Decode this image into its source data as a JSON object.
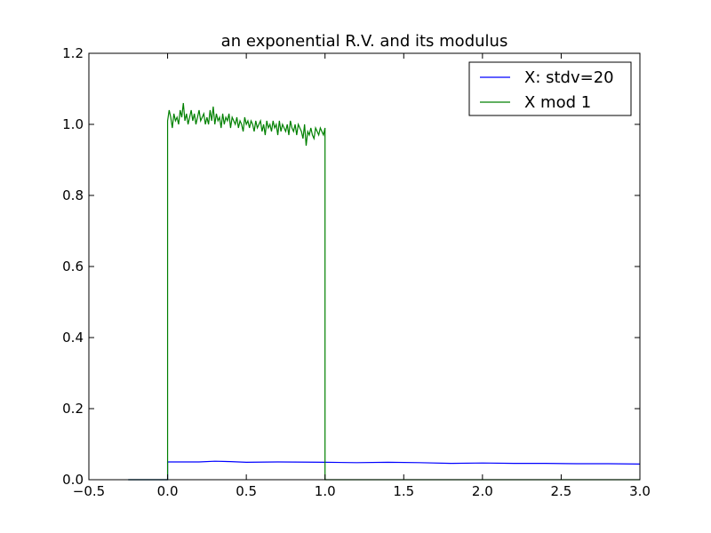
{
  "chart_data": {
    "type": "line",
    "title": "an exponential R.V. and its modulus",
    "xlabel": "",
    "ylabel": "",
    "xlim": [
      -0.5,
      3.0
    ],
    "ylim": [
      0.0,
      1.2
    ],
    "x_ticks": [
      "−0.5",
      "0.0",
      "0.5",
      "1.0",
      "1.5",
      "2.0",
      "2.5",
      "3.0"
    ],
    "y_ticks": [
      "0.0",
      "0.2",
      "0.4",
      "0.6",
      "0.8",
      "1.0",
      "1.2"
    ],
    "grid": false,
    "legend_placement": "top-right",
    "series": [
      {
        "name": "X: stdv=20",
        "color": "#0000ff",
        "x": [
          -0.25,
          -0.01,
          0.0,
          0.0,
          0.1,
          0.2,
          0.3,
          0.4,
          0.5,
          0.7,
          1.0,
          1.2,
          1.4,
          1.6,
          1.8,
          2.0,
          2.2,
          2.4,
          2.6,
          2.8,
          3.0
        ],
        "y": [
          0.0,
          0.0,
          0.0,
          0.05,
          0.05,
          0.05,
          0.052,
          0.051,
          0.049,
          0.05,
          0.049,
          0.048,
          0.049,
          0.048,
          0.046,
          0.047,
          0.046,
          0.046,
          0.045,
          0.045,
          0.044
        ]
      },
      {
        "name": "X mod 1",
        "color": "#008000",
        "x": [
          -0.25,
          -0.005,
          0.0,
          0.0,
          0.01,
          0.02,
          0.03,
          0.04,
          0.05,
          0.06,
          0.07,
          0.08,
          0.09,
          0.1,
          0.11,
          0.12,
          0.13,
          0.14,
          0.15,
          0.16,
          0.17,
          0.18,
          0.19,
          0.2,
          0.21,
          0.22,
          0.23,
          0.24,
          0.25,
          0.26,
          0.27,
          0.28,
          0.29,
          0.3,
          0.31,
          0.32,
          0.33,
          0.34,
          0.35,
          0.36,
          0.37,
          0.38,
          0.39,
          0.4,
          0.41,
          0.42,
          0.43,
          0.44,
          0.45,
          0.46,
          0.47,
          0.48,
          0.49,
          0.5,
          0.51,
          0.52,
          0.53,
          0.54,
          0.55,
          0.56,
          0.57,
          0.58,
          0.59,
          0.6,
          0.61,
          0.62,
          0.63,
          0.64,
          0.65,
          0.66,
          0.67,
          0.68,
          0.69,
          0.7,
          0.71,
          0.72,
          0.73,
          0.74,
          0.75,
          0.76,
          0.77,
          0.78,
          0.79,
          0.8,
          0.81,
          0.82,
          0.83,
          0.84,
          0.85,
          0.86,
          0.87,
          0.88,
          0.89,
          0.9,
          0.91,
          0.92,
          0.93,
          0.94,
          0.95,
          0.96,
          0.97,
          0.98,
          0.99,
          1.0,
          1.0,
          1.005,
          3.0
        ],
        "y": [
          0.0,
          0.0,
          0.0,
          1.01,
          1.04,
          1.02,
          0.99,
          1.03,
          1.01,
          1.02,
          1.0,
          1.04,
          1.02,
          1.06,
          1.01,
          1.03,
          1.0,
          1.02,
          1.04,
          1.01,
          1.03,
          1.0,
          1.02,
          1.04,
          1.01,
          1.02,
          1.03,
          1.0,
          1.02,
          1.0,
          1.04,
          1.01,
          1.05,
          1.0,
          1.03,
          1.01,
          1.02,
          0.99,
          1.03,
          1.0,
          1.02,
          1.01,
          1.03,
          0.99,
          1.02,
          1.01,
          1.0,
          1.02,
          0.99,
          1.01,
          1.0,
          0.98,
          1.02,
          1.0,
          1.01,
          0.99,
          1.01,
          1.0,
          0.98,
          1.01,
          0.99,
          1.0,
          1.01,
          0.98,
          1.0,
          0.97,
          1.01,
          0.99,
          1.0,
          0.98,
          1.01,
          0.99,
          1.0,
          0.97,
          1.01,
          0.98,
          1.0,
          0.99,
          0.98,
          1.0,
          0.97,
          1.01,
          0.99,
          0.98,
          1.0,
          0.97,
          1.0,
          0.99,
          0.98,
          0.96,
          1.0,
          0.94,
          0.98,
          0.97,
          0.99,
          0.97,
          0.96,
          0.99,
          0.98,
          0.97,
          0.99,
          0.98,
          0.97,
          0.99,
          0.0,
          0.0,
          0.0
        ]
      }
    ]
  }
}
